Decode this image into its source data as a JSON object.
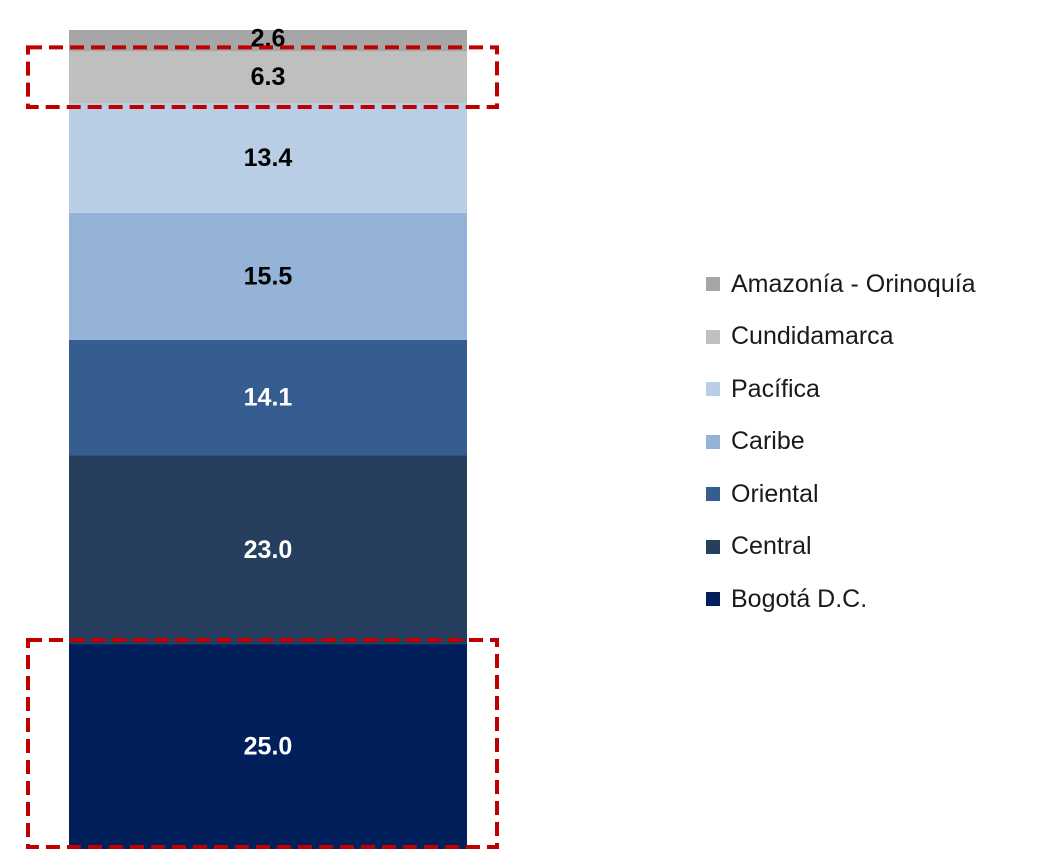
{
  "chart_data": {
    "type": "bar",
    "stacked": true,
    "categories": [
      ""
    ],
    "series": [
      {
        "name": "Bogotá D.C.",
        "values": [
          25.0
        ],
        "label": "25.0",
        "color": "#001f5b",
        "label_color": "#ffffff"
      },
      {
        "name": "Central",
        "values": [
          23.0
        ],
        "label": "23.0",
        "color": "#263f5f",
        "label_color": "#ffffff"
      },
      {
        "name": "Oriental",
        "values": [
          14.1
        ],
        "label": "14.1",
        "color": "#365d8f",
        "label_color": "#ffffff"
      },
      {
        "name": "Caribe",
        "values": [
          15.5
        ],
        "label": "15.5",
        "color": "#94b3d7",
        "label_color": "#000000"
      },
      {
        "name": "Pacífica",
        "values": [
          13.4
        ],
        "label": "13.4",
        "color": "#b9cde5",
        "label_color": "#000000"
      },
      {
        "name": "Cundidamarca",
        "values": [
          6.3
        ],
        "label": "6.3",
        "color": "#bfbfbf",
        "label_color": "#000000"
      },
      {
        "name": "Amazonía - Orinoquía",
        "values": [
          2.6
        ],
        "label": "2.6",
        "color": "#a6a6a6",
        "label_color": "#000000"
      }
    ],
    "legend_position": "right",
    "highlighted_series": [
      "Cundidamarca",
      "Bogotá D.C."
    ],
    "highlight_color": "#c00000"
  },
  "legend": {
    "items": [
      {
        "label": "Amazonía - Orinoquía",
        "color": "#a6a6a6"
      },
      {
        "label": "Cundidamarca",
        "color": "#bfbfbf"
      },
      {
        "label": "Pacífica",
        "color": "#b9cde5"
      },
      {
        "label": "Caribe",
        "color": "#94b3d7"
      },
      {
        "label": "Oriental",
        "color": "#365d8f"
      },
      {
        "label": "Central",
        "color": "#263f5f"
      },
      {
        "label": "Bogotá D.C.",
        "color": "#001f5b"
      }
    ]
  }
}
